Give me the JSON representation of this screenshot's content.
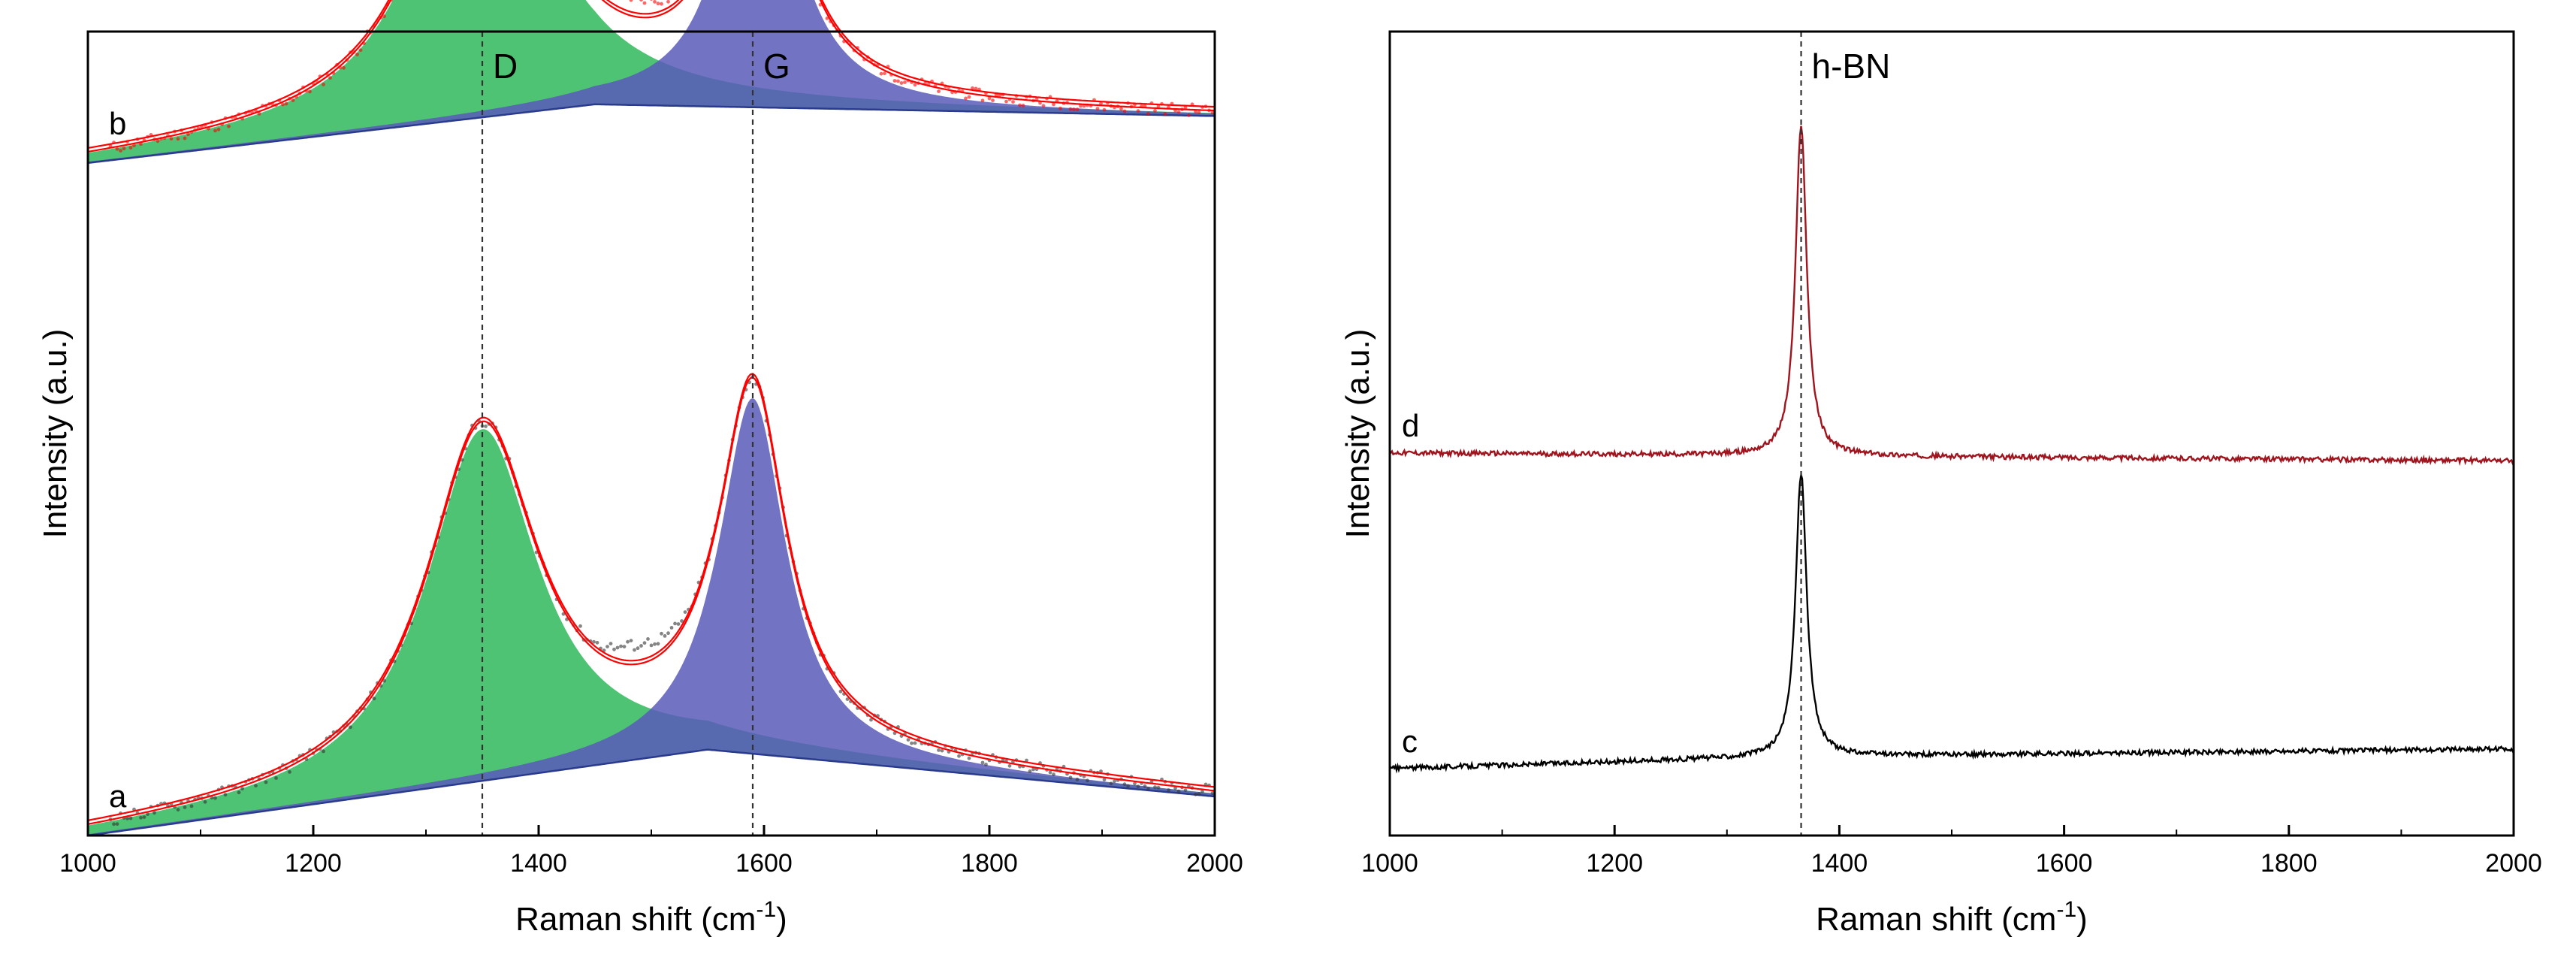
{
  "chart_data": [
    {
      "type": "line",
      "panel": "left",
      "xlabel": "Raman shift (cm",
      "xlabel_sup": "-1",
      "xlabel_end": ")",
      "ylabel": "Intensity (a.u.)",
      "xlim": [
        1000,
        2000
      ],
      "x_ticks": [
        "1000",
        "1200",
        "1400",
        "1600",
        "1800",
        "2000"
      ],
      "grid": false,
      "reference_lines": [
        {
          "label": "D",
          "x": 1350
        },
        {
          "label": "G",
          "x": 1590
        }
      ],
      "series": [
        {
          "name": "b",
          "color": "#ff0000",
          "fit_color": "#ff0000",
          "fill_colors": {
            "D": "#2fb85a",
            "G": "#5a5aba"
          },
          "baseline": [
            [
              1000,
              0.66
            ],
            [
              1450,
              0.81
            ],
            [
              2000,
              0.78
            ]
          ],
          "peaks": {
            "D": {
              "center": 1350,
              "height": 0.9,
              "width": 60
            },
            "G": {
              "center": 1595,
              "height": 0.81,
              "width": 36
            }
          }
        },
        {
          "name": "a",
          "color": "#333333",
          "fit_color": "#ff0000",
          "fill_colors": {
            "D": "#2fb85a",
            "G": "#5a5aba"
          },
          "baseline": [
            [
              1000,
              0.0
            ],
            [
              1550,
              0.22
            ],
            [
              2000,
              0.1
            ]
          ],
          "peaks": {
            "D": {
              "center": 1350,
              "height": 0.9,
              "width": 60
            },
            "G": {
              "center": 1590,
              "height": 0.91,
              "width": 36
            }
          }
        }
      ]
    },
    {
      "type": "line",
      "panel": "right",
      "xlabel": "Raman shift (cm",
      "xlabel_sup": "-1",
      "xlabel_end": ")",
      "ylabel": "Intensity (a.u.)",
      "xlim": [
        1000,
        2000
      ],
      "x_ticks": [
        "1000",
        "1200",
        "1400",
        "1600",
        "1800",
        "2000"
      ],
      "grid": false,
      "reference_lines": [
        {
          "label": "h-BN",
          "x": 1366
        }
      ],
      "series": [
        {
          "name": "d",
          "color": "#a0141e",
          "baseline": [
            [
              1000,
              0.485
            ],
            [
              2000,
              0.475
            ]
          ],
          "peak": {
            "center": 1366,
            "height": 0.42,
            "width": 6
          }
        },
        {
          "name": "c",
          "color": "#000000",
          "baseline": [
            [
              1000,
              0.085
            ],
            [
              1360,
              0.1
            ],
            [
              2000,
              0.11
            ]
          ],
          "peak": {
            "center": 1366,
            "height": 0.36,
            "width": 6
          }
        }
      ]
    }
  ]
}
